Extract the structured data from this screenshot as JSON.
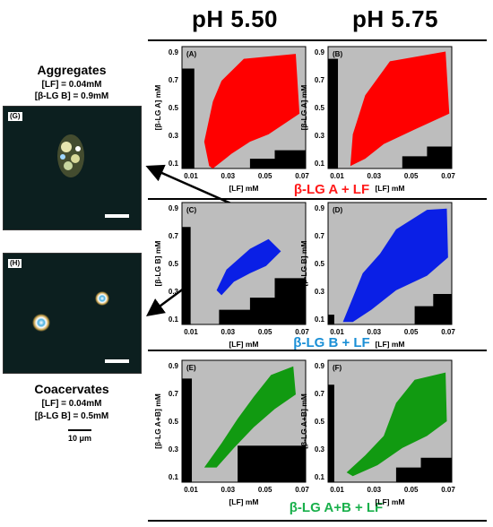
{
  "columns": {
    "left": "pH 5.50",
    "right": "pH 5.75"
  },
  "aggregates": {
    "title": "Aggregates",
    "line1": "[LF] = 0.04mM",
    "line2": "[β-LG B] = 0.9mM",
    "panel_label": "(G)"
  },
  "coacervates": {
    "title": "Coacervates",
    "line1": "[LF] = 0.04mM",
    "line2": "[β-LG B] = 0.5mM",
    "panel_label": "(H)"
  },
  "scale_bar": "10 μm",
  "rows": [
    {
      "label": "β-LG A + LF",
      "color": "#ff1a1a",
      "ylabel": "[β-LG A] mM"
    },
    {
      "label": "β-LG B + LF",
      "color": "#1a8fd6",
      "ylabel": "[β-LG B] mM"
    },
    {
      "label": "β-LG A+B + LF",
      "color": "#19b04b",
      "ylabel": "[β-LG A+B] mM"
    }
  ],
  "panels": [
    {
      "id": "(A)",
      "fill": "#ff0000"
    },
    {
      "id": "(B)",
      "fill": "#ff0000"
    },
    {
      "id": "(C)",
      "fill": "#0a1fe6"
    },
    {
      "id": "(D)",
      "fill": "#0a1fe6"
    },
    {
      "id": "(E)",
      "fill": "#119a11"
    },
    {
      "id": "(F)",
      "fill": "#119a11"
    }
  ],
  "axes": {
    "xlabel": "[LF] mM",
    "xticks": [
      "0.01",
      "0.03",
      "0.05",
      "0.07"
    ],
    "yticks": [
      "0.9",
      "0.7",
      "0.5",
      "0.3",
      "0.1"
    ]
  }
}
